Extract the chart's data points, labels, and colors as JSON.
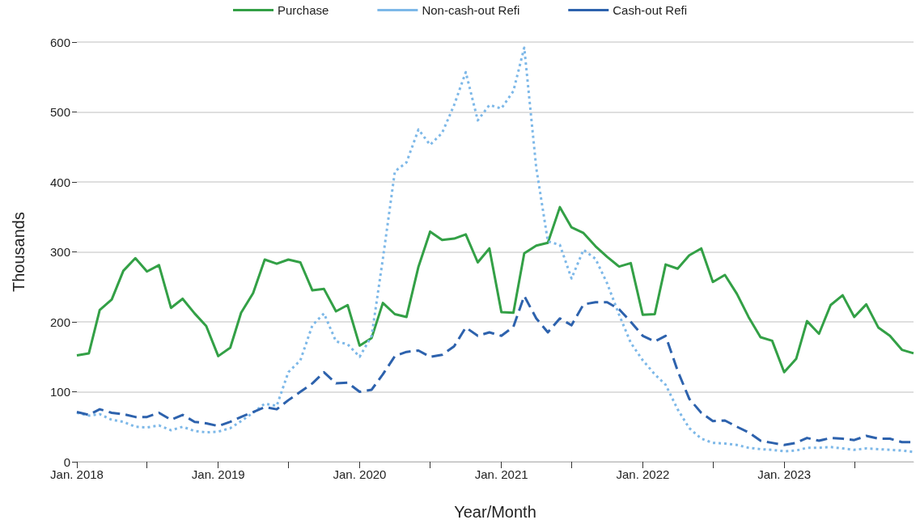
{
  "chart_data": {
    "type": "line",
    "xlabel": "Year/Month",
    "ylabel": "Thousands",
    "x": [
      "2018-01",
      "2018-02",
      "2018-03",
      "2018-04",
      "2018-05",
      "2018-06",
      "2018-07",
      "2018-08",
      "2018-09",
      "2018-10",
      "2018-11",
      "2018-12",
      "2019-01",
      "2019-02",
      "2019-03",
      "2019-04",
      "2019-05",
      "2019-06",
      "2019-07",
      "2019-08",
      "2019-09",
      "2019-10",
      "2019-11",
      "2019-12",
      "2020-01",
      "2020-02",
      "2020-03",
      "2020-04",
      "2020-05",
      "2020-06",
      "2020-07",
      "2020-08",
      "2020-09",
      "2020-10",
      "2020-11",
      "2020-12",
      "2021-01",
      "2021-02",
      "2021-03",
      "2021-04",
      "2021-05",
      "2021-06",
      "2021-07",
      "2021-08",
      "2021-09",
      "2021-10",
      "2021-11",
      "2021-12",
      "2022-01",
      "2022-02",
      "2022-03",
      "2022-04",
      "2022-05",
      "2022-06",
      "2022-07",
      "2022-08",
      "2022-09",
      "2022-10",
      "2022-11",
      "2022-12",
      "2023-01",
      "2023-02",
      "2023-03",
      "2023-04",
      "2023-05",
      "2023-06",
      "2023-07",
      "2023-08",
      "2023-09",
      "2023-10",
      "2023-11",
      "2023-12"
    ],
    "series": [
      {
        "name": "Purchase",
        "color": "#33a046",
        "line_style": "solid",
        "values": [
          152,
          155,
          217,
          232,
          273,
          291,
          272,
          281,
          220,
          233,
          212,
          194,
          151,
          163,
          213,
          241,
          289,
          283,
          289,
          285,
          245,
          247,
          215,
          224,
          166,
          177,
          227,
          211,
          207,
          279,
          329,
          317,
          319,
          325,
          285,
          305,
          214,
          213,
          298,
          309,
          313,
          364,
          335,
          327,
          308,
          293,
          279,
          284,
          210,
          211,
          282,
          276,
          295,
          305,
          257,
          267,
          240,
          207,
          178,
          173,
          128,
          147,
          201,
          183,
          224,
          238,
          207,
          225,
          192,
          180,
          160,
          155
        ]
      },
      {
        "name": "Non-cash-out Refi",
        "color": "#7db8e8",
        "line_style": "dotted",
        "values": [
          70,
          66,
          68,
          60,
          57,
          50,
          49,
          52,
          45,
          50,
          44,
          42,
          43,
          48,
          58,
          70,
          83,
          80,
          128,
          145,
          195,
          212,
          172,
          168,
          150,
          180,
          290,
          415,
          428,
          475,
          453,
          470,
          510,
          557,
          488,
          510,
          505,
          530,
          592,
          420,
          315,
          310,
          262,
          303,
          290,
          255,
          210,
          170,
          145,
          125,
          110,
          75,
          48,
          33,
          27,
          26,
          24,
          20,
          18,
          17,
          15,
          16,
          20,
          20,
          21,
          19,
          17,
          19,
          18,
          17,
          16,
          14
        ]
      },
      {
        "name": "Cash-out Refi",
        "color": "#2d62ad",
        "line_style": "dashed",
        "values": [
          71,
          67,
          75,
          70,
          68,
          64,
          64,
          70,
          60,
          67,
          57,
          55,
          51,
          57,
          64,
          71,
          78,
          75,
          88,
          100,
          112,
          128,
          112,
          113,
          100,
          103,
          125,
          151,
          157,
          159,
          150,
          153,
          165,
          192,
          180,
          185,
          180,
          193,
          237,
          205,
          185,
          205,
          195,
          225,
          228,
          228,
          218,
          200,
          180,
          172,
          180,
          130,
          90,
          70,
          58,
          59,
          50,
          42,
          30,
          27,
          24,
          27,
          34,
          30,
          34,
          33,
          31,
          37,
          33,
          33,
          28,
          28
        ]
      }
    ],
    "xlim": [
      "2018-01",
      "2023-12"
    ],
    "xticks": [
      {
        "value": "2018-01",
        "label": "Jan. 2018"
      },
      {
        "value": "2018-07",
        "label": null
      },
      {
        "value": "2019-01",
        "label": "Jan. 2019"
      },
      {
        "value": "2019-07",
        "label": null
      },
      {
        "value": "2020-01",
        "label": "Jan. 2020"
      },
      {
        "value": "2020-07",
        "label": null
      },
      {
        "value": "2021-01",
        "label": "Jan. 2021"
      },
      {
        "value": "2021-07",
        "label": null
      },
      {
        "value": "2022-01",
        "label": "Jan. 2022"
      },
      {
        "value": "2022-07",
        "label": null
      },
      {
        "value": "2023-01",
        "label": "Jan. 2023"
      },
      {
        "value": "2023-07",
        "label": null
      }
    ],
    "ylim": [
      0,
      600
    ],
    "yticks": [
      0,
      100,
      200,
      300,
      400,
      500,
      600
    ],
    "grid": "y",
    "legend": "top",
    "marker": "none"
  }
}
